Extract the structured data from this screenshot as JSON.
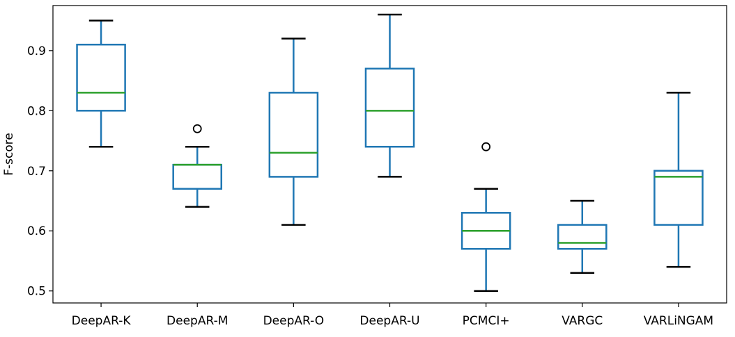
{
  "chart_data": {
    "type": "box",
    "title": "",
    "xlabel": "",
    "ylabel": "F-score",
    "ylim": [
      0.48,
      0.975
    ],
    "yticks": [
      "0.5",
      "0.6",
      "0.7",
      "0.8",
      "0.9"
    ],
    "categories": [
      "DeepAR-K",
      "DeepAR-M",
      "DeepAR-O",
      "DeepAR-U",
      "PCMCI+",
      "VARGC",
      "VARLiNGAM"
    ],
    "boxes": [
      {
        "name": "DeepAR-K",
        "whisker_low": 0.74,
        "q1": 0.8,
        "median": 0.83,
        "q3": 0.91,
        "whisker_high": 0.95,
        "outliers": []
      },
      {
        "name": "DeepAR-M",
        "whisker_low": 0.64,
        "q1": 0.67,
        "median": 0.71,
        "q3": 0.71,
        "whisker_high": 0.74,
        "outliers": [
          0.77
        ]
      },
      {
        "name": "DeepAR-O",
        "whisker_low": 0.61,
        "q1": 0.69,
        "median": 0.73,
        "q3": 0.83,
        "whisker_high": 0.92,
        "outliers": []
      },
      {
        "name": "DeepAR-U",
        "whisker_low": 0.69,
        "q1": 0.74,
        "median": 0.8,
        "q3": 0.87,
        "whisker_high": 0.96,
        "outliers": []
      },
      {
        "name": "PCMCI+",
        "whisker_low": 0.5,
        "q1": 0.57,
        "median": 0.6,
        "q3": 0.63,
        "whisker_high": 0.67,
        "outliers": [
          0.74
        ]
      },
      {
        "name": "VARGC",
        "whisker_low": 0.53,
        "q1": 0.57,
        "median": 0.58,
        "q3": 0.61,
        "whisker_high": 0.65,
        "outliers": []
      },
      {
        "name": "VARLiNGAM",
        "whisker_low": 0.54,
        "q1": 0.61,
        "median": 0.69,
        "q3": 0.7,
        "whisker_high": 0.83,
        "outliers": []
      }
    ],
    "grid": false,
    "legend": "none",
    "colors": {
      "box": "#1f77b4",
      "median": "#2ca02c",
      "cap": "#000000",
      "axis": "#000000"
    }
  }
}
